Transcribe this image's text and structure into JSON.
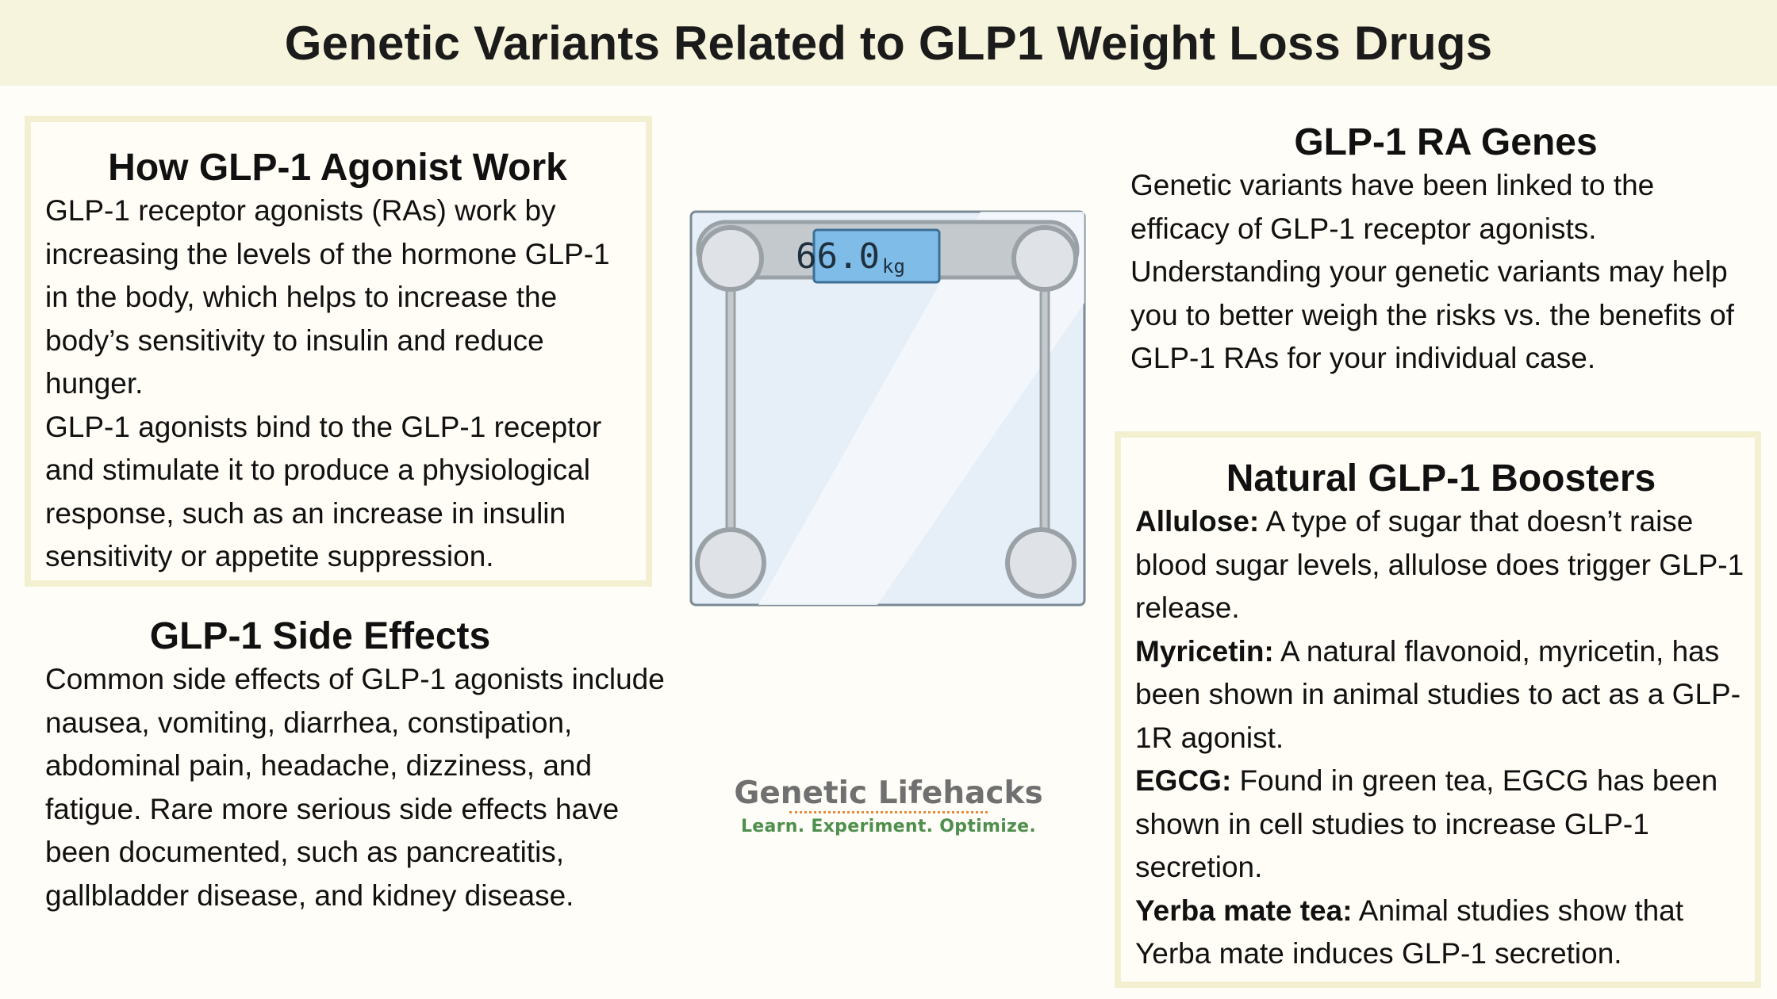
{
  "header": {
    "title": "Genetic Variants Related to GLP1 Weight Loss Drugs"
  },
  "how_it_works": {
    "title": "How GLP-1 Agonist Work",
    "paragraphs": [
      "GLP-1 receptor agonists (RAs) work by increasing the levels of the hormone GLP-1 in the body, which helps to increase the body’s sensitivity to insulin and reduce hunger.",
      "GLP-1 agonists bind to the GLP-1 receptor and stimulate it to produce a physiological response, such as an increase in insulin sensitivity or appetite suppression."
    ]
  },
  "side_effects": {
    "title": "GLP-1 Side Effects",
    "text": "Common side effects of GLP-1 agonists include nausea, vomiting, diarrhea, constipation, abdominal pain, headache, dizziness, and fatigue. Rare more serious side effects have been documented, such as pancreatitis, gallbladder disease, and kidney disease."
  },
  "genes": {
    "title": "GLP-1 RA Genes",
    "text": "Genetic variants have been linked to the efficacy of GLP-1 receptor agonists. Understanding your genetic variants may help you to better weigh the risks vs. the benefits of GLP-1 RAs for your individual case."
  },
  "boosters": {
    "title": "Natural GLP-1 Boosters",
    "items": [
      {
        "name": "Allulose:",
        "text": " A type of sugar that doesn’t raise blood sugar levels, allulose does trigger GLP-1 release."
      },
      {
        "name": "Myricetin:",
        "text": " A natural flavonoid, myricetin, has been shown in animal studies to act as a GLP-1R agonist."
      },
      {
        "name": "EGCG:",
        "text": " Found in green tea, EGCG has been shown in cell studies to increase GLP-1 secretion."
      },
      {
        "name": "Yerba mate tea:",
        "text": " Animal studies show that Yerba mate induces GLP-1 secretion."
      }
    ]
  },
  "scale": {
    "reading": "66.0",
    "unit": "kg"
  },
  "logo": {
    "title": "Genetic Lifehacks",
    "tagline": "Learn. Experiment. Optimize."
  },
  "colors": {
    "header_bg": "#f6f4dc",
    "page_bg": "#fefdf7",
    "box_border": "#f3f0d2",
    "scale_glass": "#e6eff8",
    "scale_display": "#7fbde8",
    "logo_gray": "#707070",
    "logo_green": "#4e8f4e",
    "logo_dots": "#e58a3a"
  }
}
